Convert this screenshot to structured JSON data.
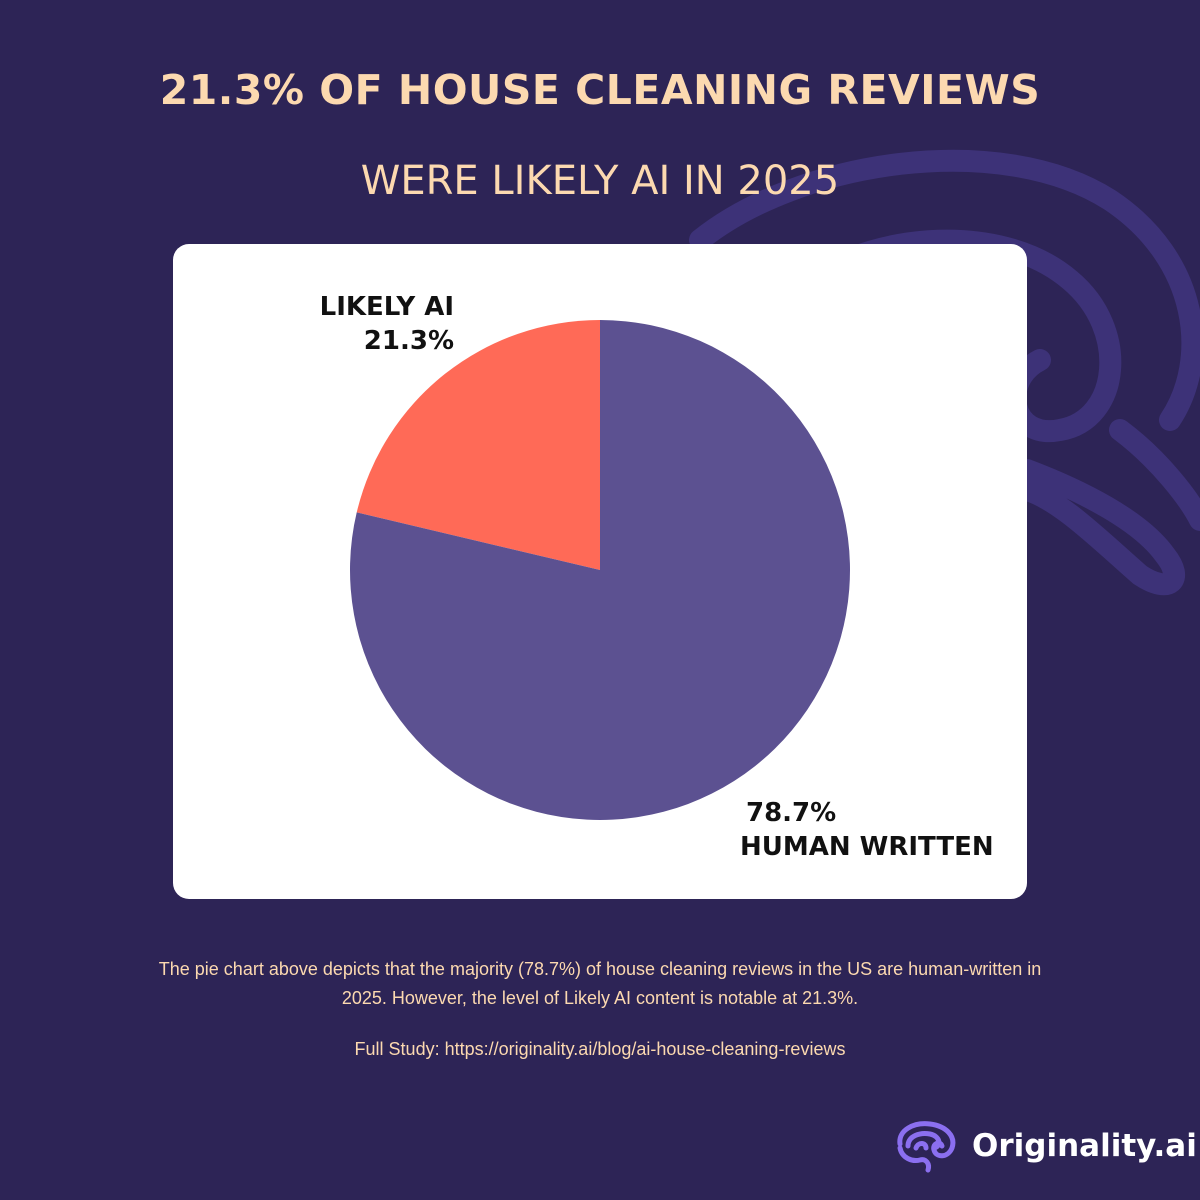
{
  "header": {
    "title": "21.3% OF HOUSE CLEANING REVIEWS",
    "subtitle": "WERE LIKELY AI IN 2025"
  },
  "chart_data": {
    "type": "pie",
    "title": "21.3% OF HOUSE CLEANING REVIEWS",
    "subtitle": "WERE LIKELY AI IN 2025",
    "categories": [
      "LIKELY AI",
      "HUMAN WRITTEN"
    ],
    "values": [
      21.3,
      78.7
    ],
    "value_labels": [
      "21.3%",
      "78.7%"
    ],
    "colors": [
      "#ff6a57",
      "#5c5191"
    ]
  },
  "caption": {
    "text": "The pie chart above depicts that the majority (78.7%) of house cleaning reviews in the US are human-written in 2025. However, the level of Likely AI content is notable at 21.3%.",
    "study_link": "Full Study: https://originality.ai/blog/ai-house-cleaning-reviews"
  },
  "brand": {
    "name": "Originality.ai",
    "logo_icon": "brain-icon"
  },
  "colors": {
    "background": "#2d2456",
    "accent_text": "#fcd9b0",
    "swirl": "#3d3278"
  }
}
